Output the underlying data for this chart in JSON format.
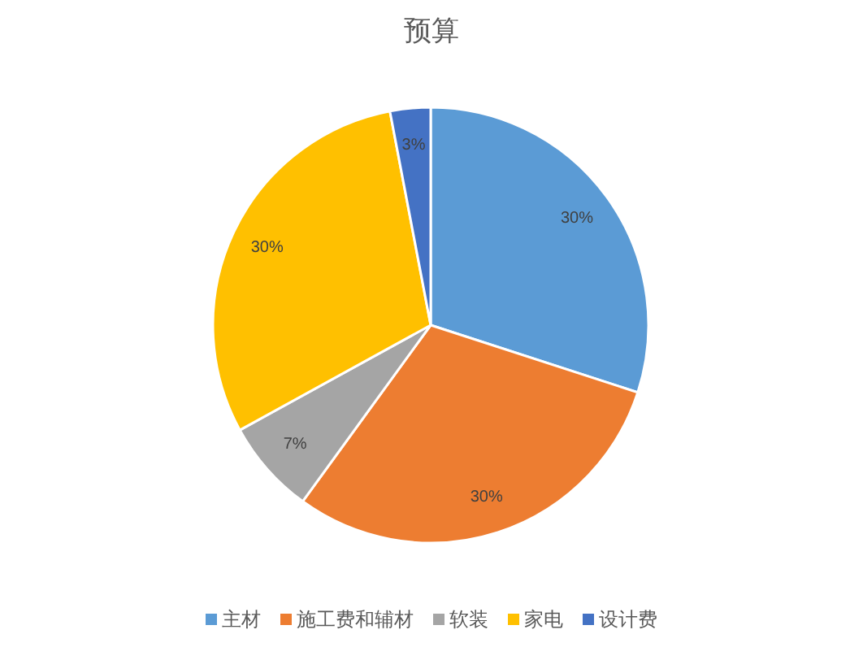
{
  "chart_data": {
    "type": "pie",
    "title": "预算",
    "categories": [
      "主材",
      "施工费和辅材",
      "软装",
      "家电",
      "设计费"
    ],
    "values": [
      30,
      30,
      7,
      30,
      3
    ],
    "colors": [
      "#5b9bd5",
      "#ed7d31",
      "#a5a5a5",
      "#ffc000",
      "#4472c4"
    ],
    "value_labels": [
      "30%",
      "30%",
      "7%",
      "30%",
      "3%"
    ],
    "legend": "bottom"
  }
}
